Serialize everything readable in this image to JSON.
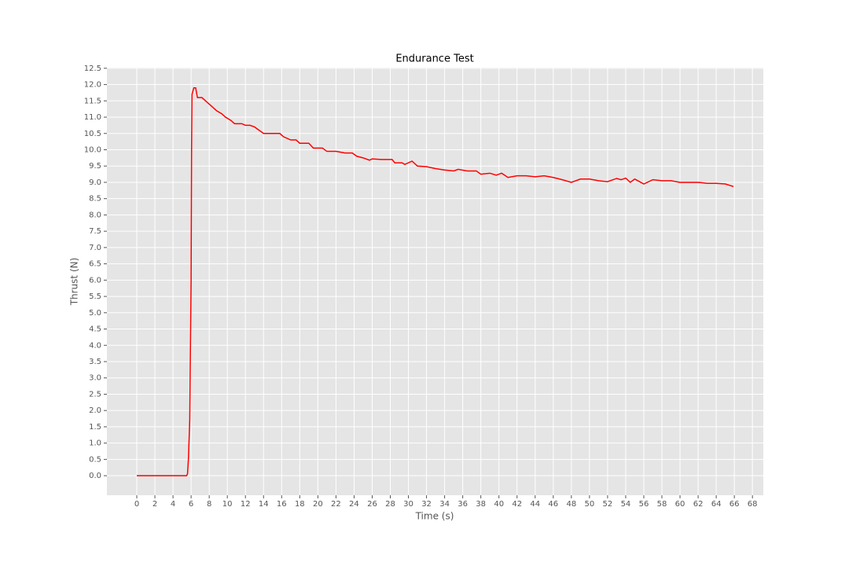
{
  "chart_data": {
    "type": "line",
    "title": "Endurance Test",
    "xlabel": "Time (s)",
    "ylabel": "Thrust (N)",
    "x": [
      0,
      1,
      2,
      3,
      4,
      5,
      5.5,
      5.6,
      5.7,
      5.85,
      6.0,
      6.05,
      6.1,
      6.3,
      6.5,
      6.7,
      7.2,
      7.6,
      8,
      8.4,
      8.8,
      9.4,
      9.8,
      10.4,
      10.8,
      11.6,
      12,
      12.5,
      13,
      13.5,
      14,
      15,
      15.8,
      16.2,
      17,
      17.6,
      18,
      19,
      19.5,
      20.5,
      21,
      22,
      23,
      23.8,
      24.3,
      25,
      25.7,
      26,
      27,
      28.2,
      28.5,
      29.3,
      29.6,
      30.4,
      31,
      32,
      33,
      34,
      35,
      35.5,
      36.5,
      37.5,
      38,
      39,
      39.7,
      40.3,
      41,
      42,
      43,
      44,
      45,
      46,
      47,
      48,
      49,
      50,
      51,
      52,
      53,
      53.5,
      54,
      54.5,
      55,
      56,
      57,
      58,
      59,
      60,
      61,
      62,
      63,
      64,
      65,
      65.9
    ],
    "series": [
      {
        "name": "Thrust",
        "color": "#ff0000",
        "values": [
          0,
          0,
          0,
          0,
          0,
          0,
          0,
          0.05,
          0.5,
          1.7,
          6,
          10,
          11.7,
          11.9,
          11.9,
          11.6,
          11.6,
          11.5,
          11.4,
          11.3,
          11.2,
          11.1,
          11.0,
          10.9,
          10.8,
          10.8,
          10.75,
          10.75,
          10.7,
          10.6,
          10.5,
          10.5,
          10.5,
          10.4,
          10.3,
          10.3,
          10.2,
          10.2,
          10.05,
          10.05,
          9.95,
          9.95,
          9.9,
          9.9,
          9.8,
          9.75,
          9.68,
          9.72,
          9.7,
          9.7,
          9.6,
          9.6,
          9.55,
          9.65,
          9.5,
          9.48,
          9.42,
          9.38,
          9.35,
          9.4,
          9.35,
          9.35,
          9.25,
          9.28,
          9.22,
          9.28,
          9.15,
          9.2,
          9.2,
          9.17,
          9.2,
          9.15,
          9.08,
          9.0,
          9.1,
          9.1,
          9.05,
          9.02,
          9.12,
          9.08,
          9.13,
          9.0,
          9.1,
          8.95,
          9.08,
          9.05,
          9.05,
          9.0,
          9.0,
          9.0,
          8.97,
          8.97,
          8.95,
          8.87
        ]
      }
    ],
    "xlim": [
      -3.3,
      69.2
    ],
    "ylim": [
      -0.6,
      12.52
    ],
    "xticks": [
      0,
      2,
      4,
      6,
      8,
      10,
      12,
      14,
      16,
      18,
      20,
      22,
      24,
      26,
      28,
      30,
      32,
      34,
      36,
      38,
      40,
      42,
      44,
      46,
      48,
      50,
      52,
      54,
      56,
      58,
      60,
      62,
      64,
      66,
      68
    ],
    "yticks": [
      {
        "value": 0,
        "label": "0.0"
      },
      0.5,
      {
        "value": 1,
        "label": "1.0"
      },
      1.5,
      {
        "value": 2,
        "label": "2.0"
      },
      2.5,
      {
        "value": 3,
        "label": "3.0"
      },
      3.5,
      {
        "value": 4,
        "label": "4.0"
      },
      4.5,
      {
        "value": 5,
        "label": "5.0"
      },
      5.5,
      {
        "value": 6,
        "label": "6.0"
      },
      6.5,
      {
        "value": 7,
        "label": "7.0"
      },
      7.5,
      {
        "value": 8,
        "label": "8.0"
      },
      8.5,
      {
        "value": 9,
        "label": "9.0"
      },
      9.5,
      {
        "value": 10,
        "label": "10.0"
      },
      10.5,
      {
        "value": 11,
        "label": "11.0"
      },
      11.5,
      {
        "value": 12,
        "label": "12.0"
      },
      12.5
    ],
    "grid": true
  }
}
